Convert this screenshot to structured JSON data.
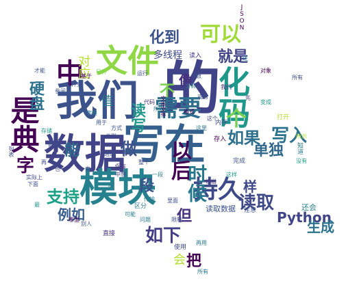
{
  "words": [
    {
      "text": "的",
      "color": "#404387"
    },
    {
      "text": "我们",
      "color": "#3b528b"
    },
    {
      "text": "数据",
      "color": "#414487"
    },
    {
      "text": "写在",
      "color": "#355f8d"
    },
    {
      "text": "模块",
      "color": "#26818e"
    },
    {
      "text": "文件",
      "color": "#8fd744"
    },
    {
      "text": "化码",
      "color": "#1f988b"
    },
    {
      "text": "是典",
      "color": "#440154"
    },
    {
      "text": "持久",
      "color": "#3e4989"
    },
    {
      "text": "需要",
      "color": "#2e6f8e"
    },
    {
      "text": "中",
      "color": "#440154"
    },
    {
      "text": "可以",
      "color": "#a0da39"
    },
    {
      "text": "化到",
      "color": "#3b528b"
    },
    {
      "text": "就是",
      "color": "#414487"
    },
    {
      "text": "写入",
      "color": "#2c728e"
    },
    {
      "text": "读取",
      "color": "#3e4989"
    },
    {
      "text": "如果",
      "color": "#2e6f8e"
    },
    {
      "text": "单独",
      "color": "#31688e"
    },
    {
      "text": "支持",
      "color": "#1fa187"
    },
    {
      "text": "如下",
      "color": "#433e85"
    },
    {
      "text": "字",
      "color": "#440154"
    },
    {
      "text": "硬盘",
      "color": "#2c728e"
    },
    {
      "text": "Python",
      "color": "#414487"
    },
    {
      "text": "生成",
      "color": "#2c728e"
    },
    {
      "text": "把",
      "color": "#440154"
    },
    {
      "text": "会",
      "color": "#b5de2b"
    },
    {
      "text": "但",
      "color": "#46327e"
    },
    {
      "text": "样",
      "color": "#3e4989"
    },
    {
      "text": "做",
      "color": "#3b528b"
    },
    {
      "text": "段",
      "color": "#3b528b"
    },
    {
      "text": "以后",
      "color": "#440154"
    },
    {
      "text": "时候",
      "color": "#2a788e"
    },
    {
      "text": "个",
      "color": "#75d054"
    },
    {
      "text": "读写",
      "color": "#1f988b"
    },
    {
      "text": "像",
      "color": "#46327e"
    },
    {
      "text": "不",
      "color": "#7ad151"
    },
    {
      "text": "能",
      "color": "#31688e"
    },
    {
      "text": "例如",
      "color": "#365c8d"
    },
    {
      "text": "值",
      "color": "#2a788e"
    },
    {
      "text": "对应",
      "color": "#b5de2b"
    },
    {
      "text": "多线程",
      "color": "#3e4989"
    },
    {
      "text": "JSON",
      "color": "#440154"
    },
    {
      "text": "读取数据",
      "color": "#3b528b"
    },
    {
      "text": "还会",
      "color": "#287d8e"
    },
    {
      "text": "所以",
      "color": "#2a788e"
    },
    {
      "text": "直接",
      "color": "#46327e"
    },
    {
      "text": "使用",
      "color": "#3e4989"
    },
    {
      "text": "所有",
      "color": "#2a788e"
    },
    {
      "text": "完成",
      "color": "#3b528b"
    },
    {
      "text": "注意",
      "color": "#3b528b"
    },
    {
      "text": "存入",
      "color": "#440154"
    },
    {
      "text": "区分",
      "color": "#2a788e"
    },
    {
      "text": "运行",
      "color": "#3b528b"
    },
    {
      "text": "文本文件",
      "color": "#440154"
    },
    {
      "text": "内存",
      "color": "#3e4989"
    },
    {
      "text": "读入",
      "color": "#46327e"
    },
    {
      "text": "参数",
      "color": "#3e4989"
    },
    {
      "text": "打开",
      "color": "#b5de2b"
    },
    {
      "text": "知道",
      "color": "#2a788e"
    },
    {
      "text": "这样",
      "color": "#1f988b"
    },
    {
      "text": "列表",
      "color": "#3e4989"
    },
    {
      "text": "别人",
      "color": "#3b528b"
    },
    {
      "text": "哪里",
      "color": "#440154"
    },
    {
      "text": "实际上",
      "color": "#3e4989"
    },
    {
      "text": "传输",
      "color": "#2a788e"
    },
    {
      "text": "必须",
      "color": "#3b528b"
    },
    {
      "text": "里面",
      "color": "#3e4989"
    },
    {
      "text": "整个",
      "color": "#3e4989"
    },
    {
      "text": "存储",
      "color": "#1f988b"
    },
    {
      "text": "对象",
      "color": "#440154"
    },
    {
      "text": "没有",
      "color": "#1fa187"
    },
    {
      "text": "所有",
      "color": "#3e4989"
    },
    {
      "text": "还",
      "color": "#2a788e"
    },
    {
      "text": "限制",
      "color": "#3e4989"
    },
    {
      "text": "可能",
      "color": "#287d8e"
    },
    {
      "text": "文件夹",
      "color": "#3e4989"
    },
    {
      "text": "格式",
      "color": "#440154"
    },
    {
      "text": "或者",
      "color": "#3b528b"
    },
    {
      "text": "当前",
      "color": "#2a788e"
    },
    {
      "text": "才能",
      "color": "#3b528b"
    },
    {
      "text": "另外",
      "color": "#75d054"
    },
    {
      "text": "再",
      "color": "#3e4989"
    },
    {
      "text": "这个",
      "color": "#3e4989"
    },
    {
      "text": "字典",
      "color": "#2a788e"
    },
    {
      "text": "基于",
      "color": "#440154"
    },
    {
      "text": "方式",
      "color": "#3b528b"
    },
    {
      "text": "先",
      "color": "#46327e"
    },
    {
      "text": "变成",
      "color": "#1f988b"
    },
    {
      "text": "类型",
      "color": "#3e4989"
    },
    {
      "text": "一样",
      "color": "#2a788e"
    },
    {
      "text": "代码",
      "color": "#46327e"
    },
    {
      "text": "参阅",
      "color": "#3b528b"
    },
    {
      "text": "也",
      "color": "#3e4989"
    },
    {
      "text": "来",
      "color": "#3e4989"
    },
    {
      "text": "下面",
      "color": "#3e4989"
    },
    {
      "text": "保存",
      "color": "#46327e"
    },
    {
      "text": "这里",
      "color": "#2a788e"
    },
    {
      "text": "一段",
      "color": "#2a788e"
    },
    {
      "text": "最",
      "color": "#1f988b"
    },
    {
      "text": "用于",
      "color": "#3b528b"
    },
    {
      "text": "所示",
      "color": "#b5de2b"
    },
    {
      "text": "通过",
      "color": "#3b528b"
    },
    {
      "text": "问题",
      "color": "#2a788e"
    },
    {
      "text": "中想",
      "color": "#3e4989"
    },
    {
      "text": "我们",
      "color": "#46327e"
    },
    {
      "text": "再用",
      "color": "#2a788e"
    },
    {
      "text": "读出",
      "color": "#46327e"
    }
  ]
}
